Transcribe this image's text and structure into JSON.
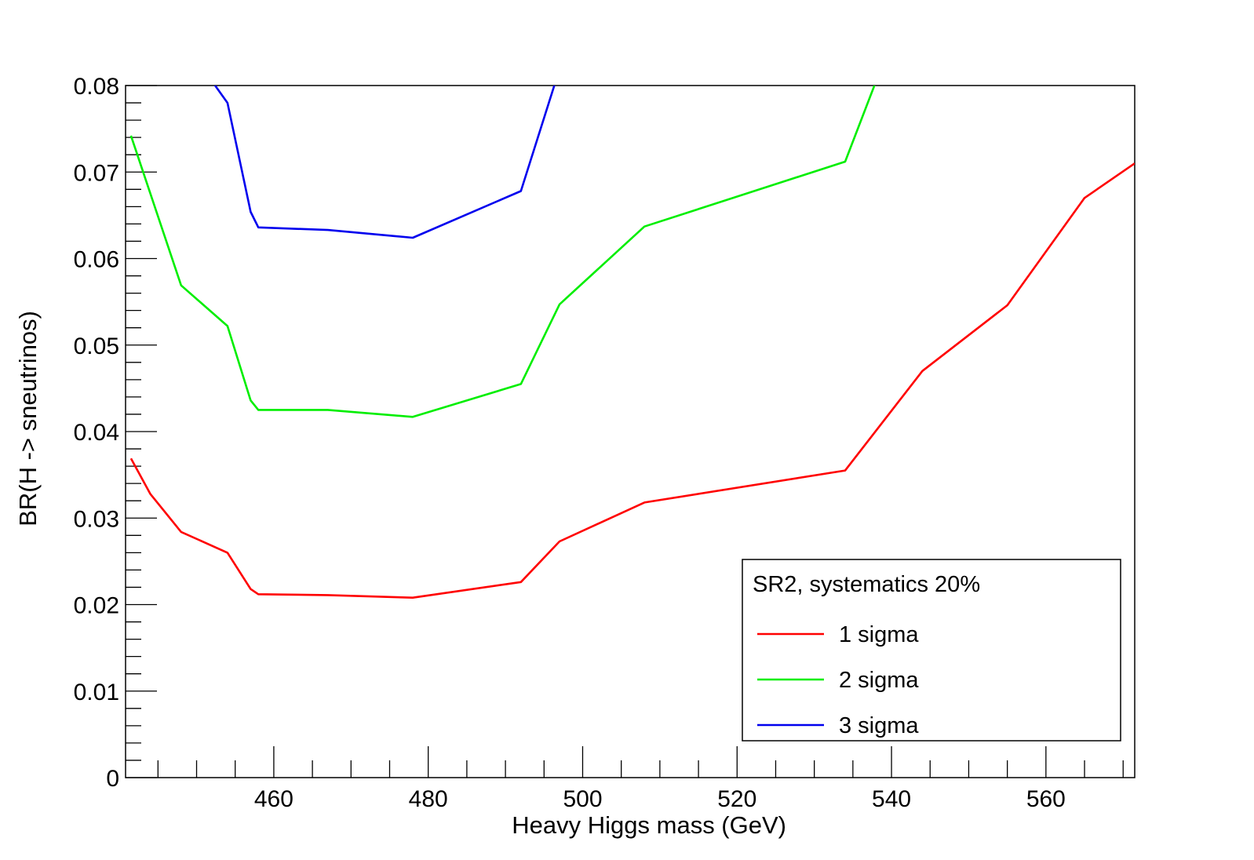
{
  "chart_data": {
    "type": "line",
    "xlabel": "Heavy Higgs mass (GeV)",
    "ylabel": "BR(H -> sneutrinos)",
    "xlim": [
      440.8,
      571.5
    ],
    "ylim": [
      0,
      0.08
    ],
    "x_ticks": [
      460,
      480,
      500,
      520,
      540,
      560
    ],
    "x_tick_labels": [
      "460",
      "480",
      "500",
      "520",
      "540",
      "560"
    ],
    "y_ticks": [
      0,
      0.01,
      0.02,
      0.03,
      0.04,
      0.05,
      0.06,
      0.07,
      0.08
    ],
    "y_tick_labels": [
      "0",
      "0.01",
      "0.02",
      "0.03",
      "0.04",
      "0.05",
      "0.06",
      "0.07",
      "0.08"
    ],
    "legend": {
      "title": "SR2, systematics 20%",
      "position": "bottom-right"
    },
    "series": [
      {
        "name": "1 sigma",
        "color": "#ff0000",
        "points": [
          [
            441.5,
            0.0369
          ],
          [
            444,
            0.0328
          ],
          [
            448,
            0.0284
          ],
          [
            454,
            0.026
          ],
          [
            457,
            0.0218
          ],
          [
            458,
            0.0212
          ],
          [
            467,
            0.0211
          ],
          [
            478,
            0.0208
          ],
          [
            492,
            0.0226
          ],
          [
            497,
            0.0273
          ],
          [
            508,
            0.0318
          ],
          [
            534,
            0.0355
          ],
          [
            544,
            0.047
          ],
          [
            555,
            0.0546
          ],
          [
            565,
            0.067
          ],
          [
            571.5,
            0.071
          ]
        ]
      },
      {
        "name": "2 sigma",
        "color": "#00ee00",
        "points": [
          [
            441.5,
            0.0742
          ],
          [
            448,
            0.0569
          ],
          [
            454,
            0.0522
          ],
          [
            457,
            0.0436
          ],
          [
            458,
            0.0425
          ],
          [
            467,
            0.0425
          ],
          [
            478,
            0.0417
          ],
          [
            492,
            0.0455
          ],
          [
            497,
            0.0547
          ],
          [
            508,
            0.0637
          ],
          [
            534,
            0.0712
          ],
          [
            538,
            0.0805
          ]
        ]
      },
      {
        "name": "3 sigma",
        "color": "#0000ee",
        "points": [
          [
            452,
            0.0805
          ],
          [
            454,
            0.078
          ],
          [
            457,
            0.0654
          ],
          [
            458,
            0.0636
          ],
          [
            467,
            0.0633
          ],
          [
            478,
            0.0624
          ],
          [
            492,
            0.0678
          ],
          [
            496.5,
            0.0805
          ]
        ]
      }
    ]
  }
}
